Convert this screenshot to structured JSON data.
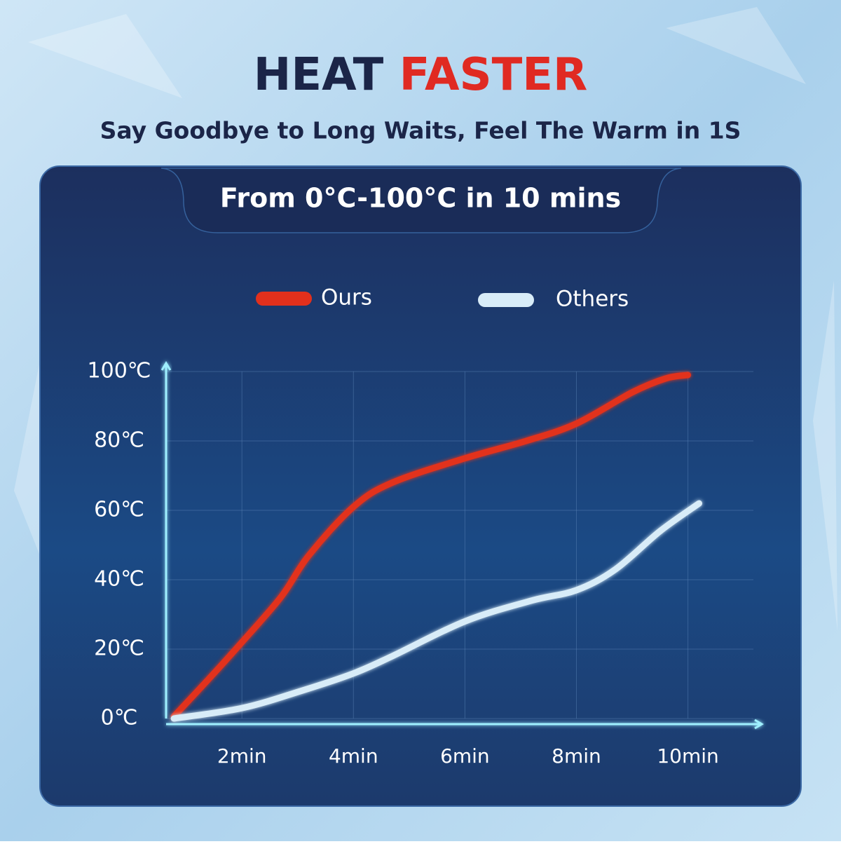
{
  "chart_data": {
    "type": "line",
    "title": {
      "part1": "HEAT",
      "part2": "FASTER"
    },
    "subtitle": "Say Goodbye to Long Waits, Feel The Warm in 1S",
    "panel_title": "From 0°C-100°C in 10 mins",
    "series": [
      {
        "name": "Ours",
        "color": "#e2301c",
        "x": [
          0.78,
          1.44,
          2,
          2.7,
          3.2,
          4,
          4.7,
          6,
          7.1,
          8,
          9,
          9.6,
          10
        ],
        "values": [
          0.6,
          12,
          22,
          35,
          47,
          61,
          68,
          75,
          80,
          85,
          94,
          98,
          99
        ]
      },
      {
        "name": "Others",
        "color": "#d8ecf8",
        "x": [
          0.78,
          2,
          3.07,
          4,
          4.7,
          6,
          7.2,
          8,
          8.7,
          9.5,
          10.2
        ],
        "values": [
          0,
          3,
          8,
          13,
          18,
          28,
          34,
          37,
          43,
          54,
          62
        ]
      }
    ],
    "xlim": [
      0.64,
      11.3
    ],
    "ylim": [
      0,
      100
    ],
    "xticks": [
      {
        "value": 2,
        "label": "2min"
      },
      {
        "value": 4,
        "label": "4min"
      },
      {
        "value": 6,
        "label": "6min"
      },
      {
        "value": 8,
        "label": "8min"
      },
      {
        "value": 10,
        "label": "10min"
      }
    ],
    "yticks": [
      {
        "value": 0,
        "label": "0℃"
      },
      {
        "value": 20,
        "label": "20℃"
      },
      {
        "value": 40,
        "label": "40℃"
      },
      {
        "value": 60,
        "label": "60℃"
      },
      {
        "value": 80,
        "label": "80℃"
      },
      {
        "value": 100,
        "label": "100℃"
      }
    ],
    "grid": true
  }
}
